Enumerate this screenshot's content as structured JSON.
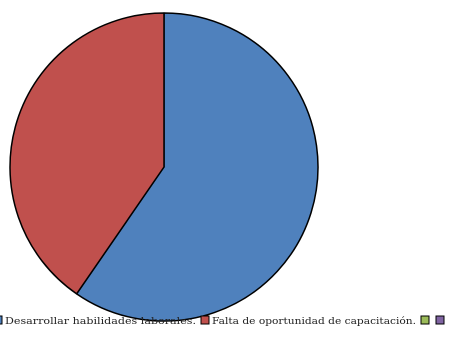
{
  "chart_data": {
    "type": "pie",
    "title": "",
    "slices": [
      {
        "label": "Desarrollar habilidades laborales.",
        "value": 59.6,
        "color": "#4f81bd"
      },
      {
        "label": "Falta de oportunidad de capacitación.",
        "value": 40.4,
        "color": "#c0504d"
      },
      {
        "label": "",
        "value": 0,
        "color": "#9bbb59"
      },
      {
        "label": "",
        "value": 0,
        "color": "#8064a2"
      }
    ],
    "legend_position": "bottom",
    "legend_text": [
      "Desarrollar habilidades laborales.",
      "Falta de oportunidad de capacitación."
    ]
  }
}
